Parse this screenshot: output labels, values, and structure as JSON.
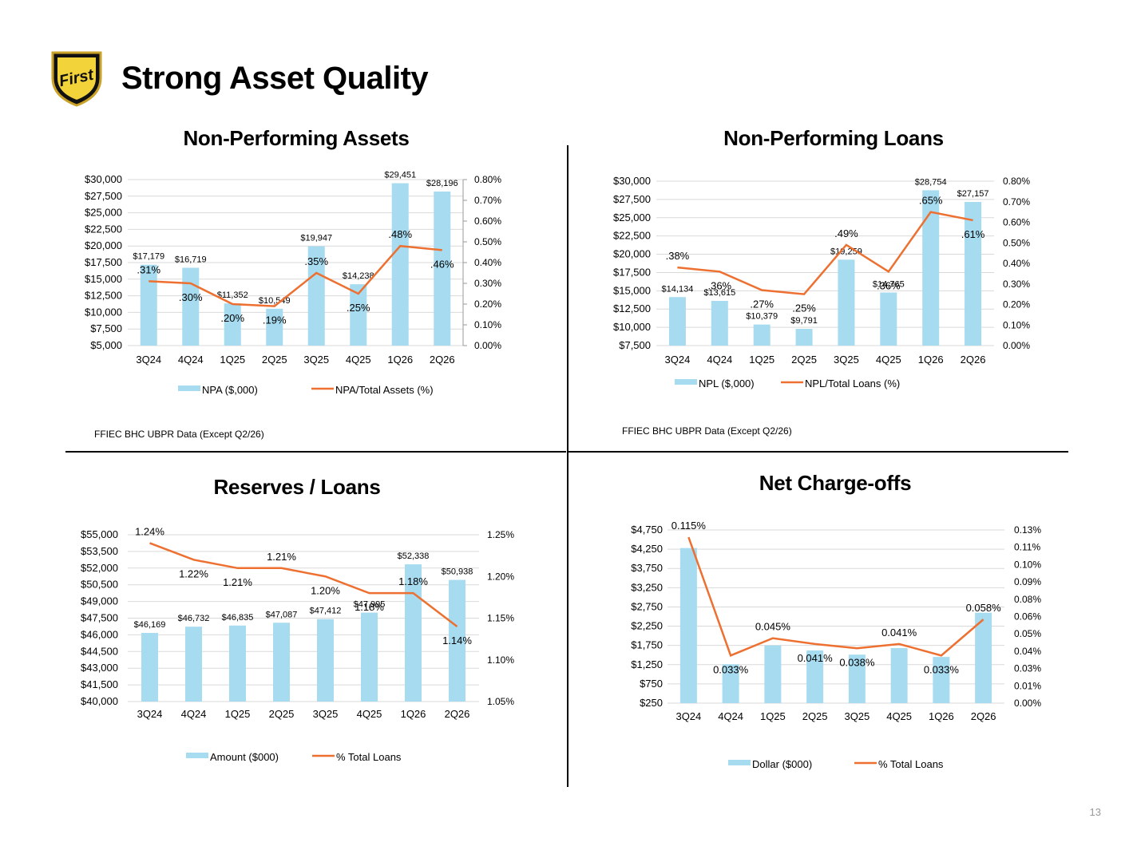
{
  "page": {
    "title": "Strong Asset Quality",
    "logo_text": "First",
    "page_number": "13"
  },
  "colors": {
    "bar": "#a6dbf0",
    "line": "#ed7031",
    "grid": "#d9d9d9"
  },
  "panels": {
    "npa": {
      "title": "Non-Performing Assets",
      "source": "FFIEC BHC UBPR Data (Except Q2/26)"
    },
    "npl": {
      "title": "Non-Performing Loans",
      "source": "FFIEC BHC UBPR Data (Except Q2/26)"
    },
    "reserves": {
      "title": "Reserves / Loans"
    },
    "nco": {
      "title": "Net Charge-offs"
    }
  },
  "chart_data": [
    {
      "id": "npa",
      "type": "bar",
      "title": "Non-Performing Assets",
      "categories": [
        "3Q24",
        "4Q24",
        "1Q25",
        "2Q25",
        "3Q25",
        "4Q25",
        "1Q26",
        "2Q26"
      ],
      "bar_series": {
        "name": "NPA ($,000)",
        "values": [
          17179,
          16719,
          11352,
          10549,
          19947,
          14238,
          29451,
          28196
        ],
        "labels": [
          "$17,179",
          "$16,719",
          "$11,352",
          "$10,549",
          "$19,947",
          "$14,238",
          "$29,451",
          "$28,196"
        ]
      },
      "line_series": {
        "name": "NPA/Total Assets (%)",
        "values": [
          0.31,
          0.3,
          0.2,
          0.19,
          0.35,
          0.25,
          0.48,
          0.46
        ],
        "labels": [
          ".31%",
          ".30%",
          ".20%",
          ".19%",
          ".35%",
          ".25%",
          ".48%",
          ".46%"
        ]
      },
      "y_left": {
        "min": 5000,
        "max": 30000,
        "step": 2500,
        "ticks": [
          "$5,000",
          "$7,500",
          "$10,000",
          "$12,500",
          "$15,000",
          "$17,500",
          "$20,000",
          "$22,500",
          "$25,000",
          "$27,500",
          "$30,000"
        ]
      },
      "y_right": {
        "min": 0,
        "max": 0.8,
        "step": 0.1,
        "ticks": [
          "0.00%",
          "0.10%",
          "0.20%",
          "0.30%",
          "0.40%",
          "0.50%",
          "0.60%",
          "0.70%",
          "0.80%"
        ]
      },
      "legend": "bottom"
    },
    {
      "id": "npl",
      "type": "bar",
      "title": "Non-Performing Loans",
      "categories": [
        "3Q24",
        "4Q24",
        "1Q25",
        "2Q25",
        "3Q25",
        "4Q25",
        "1Q26",
        "2Q26"
      ],
      "bar_series": {
        "name": "NPL ($,000)",
        "values": [
          14134,
          13615,
          10379,
          9791,
          19259,
          14765,
          28754,
          27157
        ],
        "labels": [
          "$14,134",
          "$13,615",
          "$10,379",
          "$9,791",
          "$19,259",
          "$14,765",
          "$28,754",
          "$27,157"
        ]
      },
      "line_series": {
        "name": "NPL/Total Loans (%)",
        "values": [
          0.38,
          0.36,
          0.27,
          0.25,
          0.49,
          0.36,
          0.65,
          0.61
        ],
        "labels": [
          ".38%",
          ".36%",
          ".27%",
          ".25%",
          ".49%",
          ".36%",
          ".65%",
          ".61%"
        ]
      },
      "y_left": {
        "min": 7500,
        "max": 30000,
        "step": 2500,
        "ticks": [
          "$7,500",
          "$10,000",
          "$12,500",
          "$15,000",
          "$17,500",
          "$20,000",
          "$22,500",
          "$25,000",
          "$27,500",
          "$30,000"
        ]
      },
      "y_right": {
        "min": 0,
        "max": 0.8,
        "step": 0.1,
        "ticks": [
          "0.00%",
          "0.10%",
          "0.20%",
          "0.30%",
          "0.40%",
          "0.50%",
          "0.60%",
          "0.70%",
          "0.80%"
        ]
      },
      "legend": "bottom"
    },
    {
      "id": "reserves",
      "type": "bar",
      "title": "Reserves / Loans",
      "categories": [
        "3Q24",
        "4Q24",
        "1Q25",
        "2Q25",
        "3Q25",
        "4Q25",
        "1Q26",
        "2Q26"
      ],
      "bar_series": {
        "name": "Amount ($000)",
        "values": [
          46169,
          46732,
          46835,
          47087,
          47412,
          47995,
          52338,
          50938
        ],
        "labels": [
          "$46,169",
          "$46,732",
          "$46,835",
          "$47,087",
          "$47,412",
          "$47,995",
          "$52,338",
          "$50,938"
        ]
      },
      "line_series": {
        "name": "% Total Loans",
        "values": [
          1.24,
          1.22,
          1.21,
          1.21,
          1.2,
          1.18,
          1.18,
          1.14
        ],
        "labels": [
          "1.24%",
          "1.22%",
          "1.21%",
          "1.21%",
          "1.20%",
          "1.18%",
          "1.18%",
          "1.14%"
        ]
      },
      "y_left": {
        "min": 40000,
        "max": 55000,
        "step": 1500,
        "ticks": [
          "$40,000",
          "$41,500",
          "$43,000",
          "$44,500",
          "$46,000",
          "$47,500",
          "$49,000",
          "$50,500",
          "$52,000",
          "$53,500",
          "$55,000"
        ]
      },
      "y_right": {
        "min": 1.05,
        "max": 1.25,
        "step": 0.05,
        "ticks": [
          "1.05%",
          "1.10%",
          "1.15%",
          "1.20%",
          "1.25%"
        ]
      },
      "legend": "bottom"
    },
    {
      "id": "nco",
      "type": "bar",
      "title": "Net Charge-offs",
      "categories": [
        "3Q24",
        "4Q24",
        "1Q25",
        "2Q25",
        "3Q25",
        "4Q25",
        "1Q26",
        "2Q26"
      ],
      "bar_series": {
        "name": "Dollar ($000)",
        "values": [
          4280,
          1260,
          1750,
          1620,
          1510,
          1680,
          1450,
          2600
        ],
        "labels": []
      },
      "line_series": {
        "name": "% Total Loans",
        "values": [
          0.115,
          0.033,
          0.045,
          0.041,
          0.038,
          0.041,
          0.033,
          0.058
        ],
        "labels": [
          "0.115%",
          "0.033%",
          "0.045%",
          "0.041%",
          "0.038%",
          "0.041%",
          "0.033%",
          "0.058%"
        ]
      },
      "y_left": {
        "min": 250,
        "max": 4750,
        "step": 500,
        "ticks": [
          "$250",
          "$750",
          "$1,250",
          "$1,750",
          "$2,250",
          "$2,750",
          "$3,250",
          "$3,750",
          "$4,250",
          "$4,750"
        ]
      },
      "y_right": {
        "min": 0,
        "max": 0.12,
        "step": 0.01,
        "ticks": [
          "0.00%",
          "0.01%",
          "0.03%",
          "0.04%",
          "0.05%",
          "0.06%",
          "0.08%",
          "0.09%",
          "0.10%",
          "0.11%",
          "0.13%"
        ]
      },
      "legend": "bottom"
    }
  ]
}
